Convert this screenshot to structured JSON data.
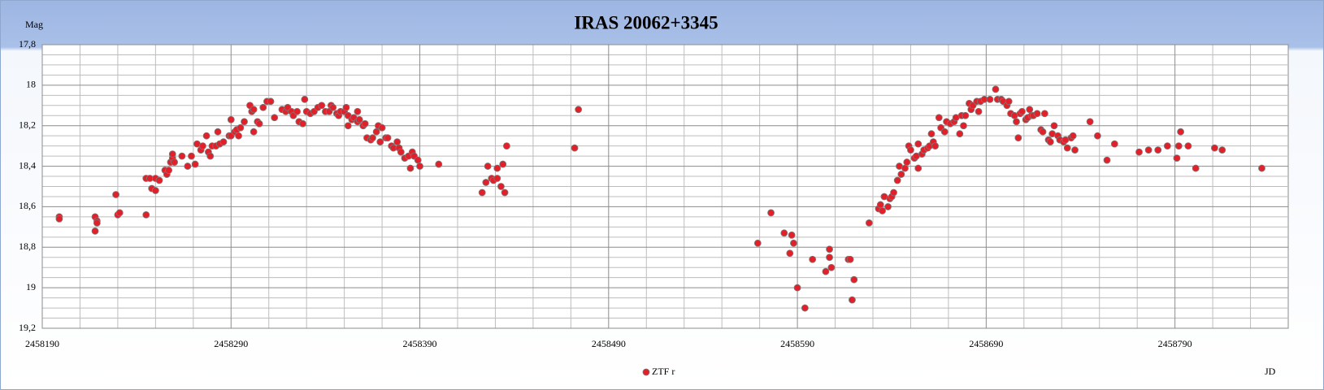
{
  "chart_data": {
    "type": "scatter",
    "title": "IRAS 20062+3345",
    "x_label": "JD",
    "y_label": "Mag",
    "xlim": [
      2458190,
      2458850
    ],
    "xticks": [
      2458190,
      2458290,
      2458390,
      2458490,
      2458590,
      2458690,
      2458790
    ],
    "ylim": [
      19.2,
      17.8
    ],
    "yticks": [
      {
        "value": 17.8,
        "label": "17,8"
      },
      18,
      {
        "value": 18.2,
        "label": "18,2"
      },
      {
        "value": 18.4,
        "label": "18,4"
      },
      {
        "value": 18.6,
        "label": "18,6"
      },
      {
        "value": 18.8,
        "label": "18,8"
      },
      19,
      {
        "value": 19.2,
        "label": "19,2"
      }
    ],
    "grid": true,
    "minor_grid": true,
    "legend": "bottom",
    "x": [
      2458199,
      2458199,
      2458218,
      2458219,
      2458219,
      2458218,
      2458229,
      2458230,
      2458231,
      2458245,
      2458245,
      2458247,
      2458248,
      2458250,
      2458250,
      2458252,
      2458255,
      2458256,
      2458257,
      2458258,
      2458259,
      2458259,
      2458260,
      2458264,
      2458267,
      2458269,
      2458271,
      2458272,
      2458274,
      2458275,
      2458277,
      2458278,
      2458279,
      2458280,
      2458282,
      2458283,
      2458284,
      2458286,
      2458289,
      2458290,
      2458290,
      2458292,
      2458293,
      2458294,
      2458295,
      2458297,
      2458300,
      2458301,
      2458302,
      2458302,
      2458304,
      2458305,
      2458307,
      2458309,
      2458311,
      2458313,
      2458317,
      2458319,
      2458320,
      2458322,
      2458323,
      2458325,
      2458326,
      2458328,
      2458329,
      2458330,
      2458332,
      2458334,
      2458336,
      2458338,
      2458340,
      2458342,
      2458343,
      2458344,
      2458346,
      2458347,
      2458348,
      2458350,
      2458351,
      2458352,
      2458352,
      2458354,
      2458355,
      2458357,
      2458357,
      2458358,
      2458360,
      2458361,
      2458362,
      2458364,
      2458365,
      2458367,
      2458368,
      2458369,
      2458370,
      2458372,
      2458373,
      2458375,
      2458376,
      2458378,
      2458379,
      2458380,
      2458382,
      2458384,
      2458385,
      2458386,
      2458387,
      2458389,
      2458390,
      2458400,
      2458423,
      2458425,
      2458426,
      2458428,
      2458429,
      2458431,
      2458431,
      2458433,
      2458434,
      2458435,
      2458436,
      2458472,
      2458474,
      2458569,
      2458576,
      2458583,
      2458586,
      2458587,
      2458588,
      2458590,
      2458594,
      2458598,
      2458605,
      2458607,
      2458607,
      2458608,
      2458617,
      2458618,
      2458619,
      2458620,
      2458628,
      2458633,
      2458634,
      2458635,
      2458636,
      2458638,
      2458639,
      2458640,
      2458641,
      2458643,
      2458644,
      2458645,
      2458647,
      2458648,
      2458649,
      2458650,
      2458652,
      2458653,
      2458654,
      2458654,
      2458656,
      2458657,
      2458659,
      2458660,
      2458661,
      2458662,
      2458663,
      2458665,
      2458666,
      2458668,
      2458669,
      2458671,
      2458673,
      2458674,
      2458676,
      2458677,
      2458678,
      2458679,
      2458681,
      2458682,
      2458683,
      2458685,
      2458686,
      2458687,
      2458689,
      2458692,
      2458695,
      2458696,
      2458698,
      2458699,
      2458701,
      2458702,
      2458703,
      2458705,
      2458706,
      2458707,
      2458708,
      2458709,
      2458711,
      2458712,
      2458713,
      2458714,
      2458715,
      2458717,
      2458719,
      2458720,
      2458721,
      2458723,
      2458724,
      2458725,
      2458726,
      2458728,
      2458729,
      2458731,
      2458732,
      2458733,
      2458735,
      2458736,
      2458737,
      2458745,
      2458749,
      2458754,
      2458758,
      2458771,
      2458776,
      2458781,
      2458786,
      2458791,
      2458792,
      2458793,
      2458797,
      2458801,
      2458811,
      2458815,
      2458836
    ],
    "series": [
      {
        "name": "ZTF r",
        "color": "#e3202a",
        "values": [
          18.65,
          18.66,
          18.65,
          18.67,
          18.68,
          18.72,
          18.54,
          18.64,
          18.63,
          18.64,
          18.46,
          18.46,
          18.51,
          18.52,
          18.46,
          18.47,
          18.42,
          18.44,
          18.42,
          18.38,
          18.36,
          18.34,
          18.38,
          18.35,
          18.4,
          18.35,
          18.39,
          18.29,
          18.32,
          18.3,
          18.25,
          18.33,
          18.35,
          18.3,
          18.3,
          18.23,
          18.29,
          18.28,
          18.25,
          18.25,
          18.17,
          18.23,
          18.22,
          18.25,
          18.21,
          18.18,
          18.1,
          18.13,
          18.12,
          18.23,
          18.18,
          18.19,
          18.11,
          18.08,
          18.08,
          18.16,
          18.12,
          18.13,
          18.11,
          18.13,
          18.15,
          18.13,
          18.18,
          18.19,
          18.07,
          18.13,
          18.14,
          18.13,
          18.11,
          18.1,
          18.13,
          18.13,
          18.1,
          18.11,
          18.14,
          18.15,
          18.13,
          18.13,
          18.11,
          18.15,
          18.2,
          18.17,
          18.16,
          18.18,
          18.13,
          18.17,
          18.2,
          18.19,
          18.26,
          18.27,
          18.26,
          18.23,
          18.2,
          18.28,
          18.21,
          18.26,
          18.26,
          18.3,
          18.31,
          18.28,
          18.31,
          18.33,
          18.36,
          18.35,
          18.41,
          18.33,
          18.35,
          18.37,
          18.4,
          18.39,
          18.53,
          18.48,
          18.4,
          18.46,
          18.47,
          18.46,
          18.41,
          18.5,
          18.39,
          18.53,
          18.3,
          18.31,
          18.12,
          18.78,
          18.63,
          18.73,
          18.83,
          18.74,
          18.78,
          19.0,
          19.1,
          18.86,
          18.92,
          18.85,
          18.81,
          18.9,
          18.86,
          18.86,
          19.06,
          18.96,
          18.68,
          18.61,
          18.59,
          18.62,
          18.55,
          18.6,
          18.56,
          18.55,
          18.53,
          18.47,
          18.4,
          18.44,
          18.41,
          18.38,
          18.3,
          18.32,
          18.36,
          18.35,
          18.41,
          18.29,
          18.34,
          18.32,
          18.31,
          18.3,
          18.24,
          18.28,
          18.3,
          18.16,
          18.21,
          18.23,
          18.18,
          18.19,
          18.18,
          18.16,
          18.24,
          18.15,
          18.2,
          18.15,
          18.09,
          18.12,
          18.1,
          18.08,
          18.13,
          18.08,
          18.07,
          18.07,
          18.02,
          18.07,
          18.07,
          18.08,
          18.1,
          18.08,
          18.14,
          18.15,
          18.18,
          18.26,
          18.14,
          18.13,
          18.17,
          18.16,
          18.12,
          18.15,
          18.15,
          18.14,
          18.22,
          18.23,
          18.14,
          18.27,
          18.28,
          18.24,
          18.2,
          18.25,
          18.27,
          18.28,
          18.27,
          18.31,
          18.26,
          18.25,
          18.32,
          18.18,
          18.25,
          18.37,
          18.29,
          18.33,
          18.32,
          18.32,
          18.3,
          18.36,
          18.3,
          18.23,
          18.3,
          18.41,
          18.31,
          18.32,
          18.41
        ]
      }
    ]
  }
}
